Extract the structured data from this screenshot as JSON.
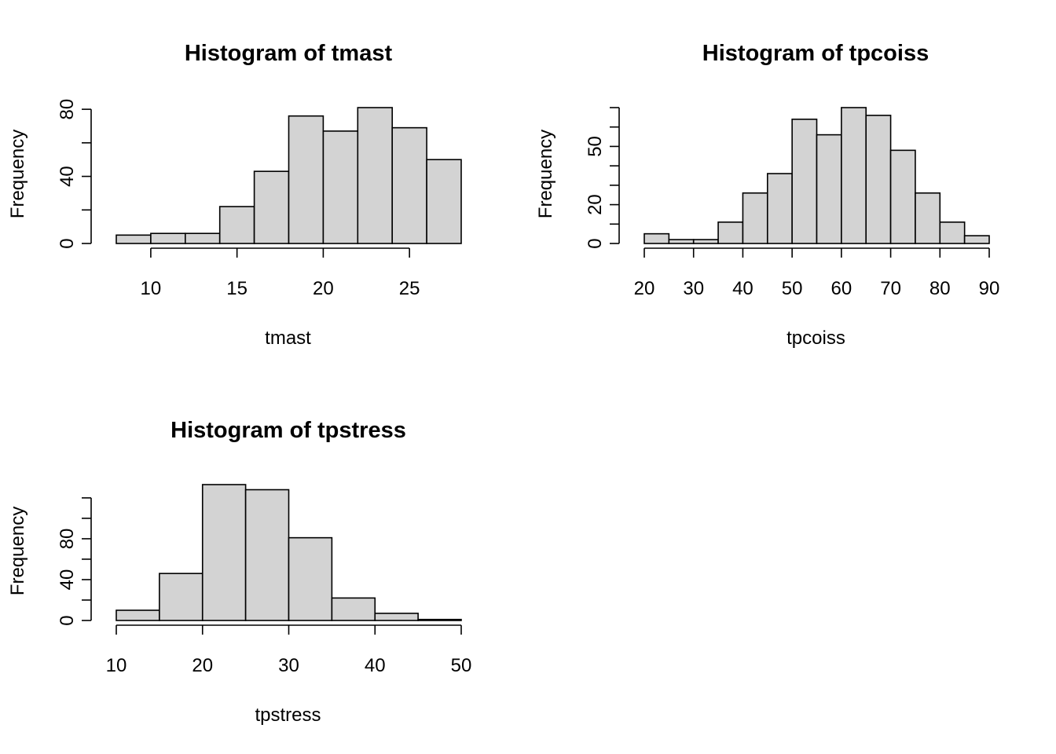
{
  "colors": {
    "bar_fill": "#d3d3d3",
    "bar_stroke": "#000000",
    "background": "#ffffff"
  },
  "chart_data": [
    {
      "type": "bar",
      "title": "Histogram of tmast",
      "xlabel": "tmast",
      "ylabel": "Frequency",
      "bin_edges": [
        8,
        10,
        12,
        14,
        16,
        18,
        20,
        22,
        24,
        26,
        28
      ],
      "values": [
        5,
        6,
        6,
        22,
        43,
        76,
        67,
        81,
        69,
        50
      ],
      "xticks": [
        10,
        15,
        20,
        25
      ],
      "xticklabels": [
        "10",
        "15",
        "20",
        "25"
      ],
      "yticks": [
        0,
        20,
        40,
        60,
        80
      ],
      "yticklabels": [
        "0",
        "",
        "40",
        "",
        "80"
      ],
      "ylim": [
        0,
        81
      ],
      "grid": false
    },
    {
      "type": "bar",
      "title": "Histogram of tpcoiss",
      "xlabel": "tpcoiss",
      "ylabel": "Frequency",
      "bin_edges": [
        20,
        25,
        30,
        35,
        40,
        45,
        50,
        55,
        60,
        65,
        70,
        75,
        80,
        85,
        90
      ],
      "values": [
        5,
        2,
        2,
        11,
        26,
        36,
        64,
        56,
        70,
        66,
        48,
        26,
        11,
        4
      ],
      "xticks": [
        20,
        30,
        40,
        50,
        60,
        70,
        80,
        90
      ],
      "xticklabels": [
        "20",
        "30",
        "40",
        "50",
        "60",
        "70",
        "80",
        "90"
      ],
      "yticks": [
        0,
        10,
        20,
        30,
        40,
        50,
        60,
        70
      ],
      "yticklabels": [
        "0",
        "",
        "20",
        "",
        "",
        "50",
        "",
        ""
      ],
      "ylim": [
        0,
        70
      ],
      "grid": false
    },
    {
      "type": "bar",
      "title": "Histogram of tpstress",
      "xlabel": "tpstress",
      "ylabel": "Frequency",
      "bin_edges": [
        10,
        15,
        20,
        25,
        30,
        35,
        40,
        45,
        50
      ],
      "values": [
        10,
        46,
        133,
        128,
        81,
        22,
        7,
        1
      ],
      "xticks": [
        10,
        20,
        30,
        40,
        50
      ],
      "xticklabels": [
        "10",
        "20",
        "30",
        "40",
        "50"
      ],
      "yticks": [
        0,
        20,
        40,
        60,
        80,
        100,
        120
      ],
      "yticklabels": [
        "0",
        "",
        "40",
        "",
        "80",
        "",
        ""
      ],
      "ylim": [
        0,
        133
      ],
      "grid": false
    }
  ]
}
